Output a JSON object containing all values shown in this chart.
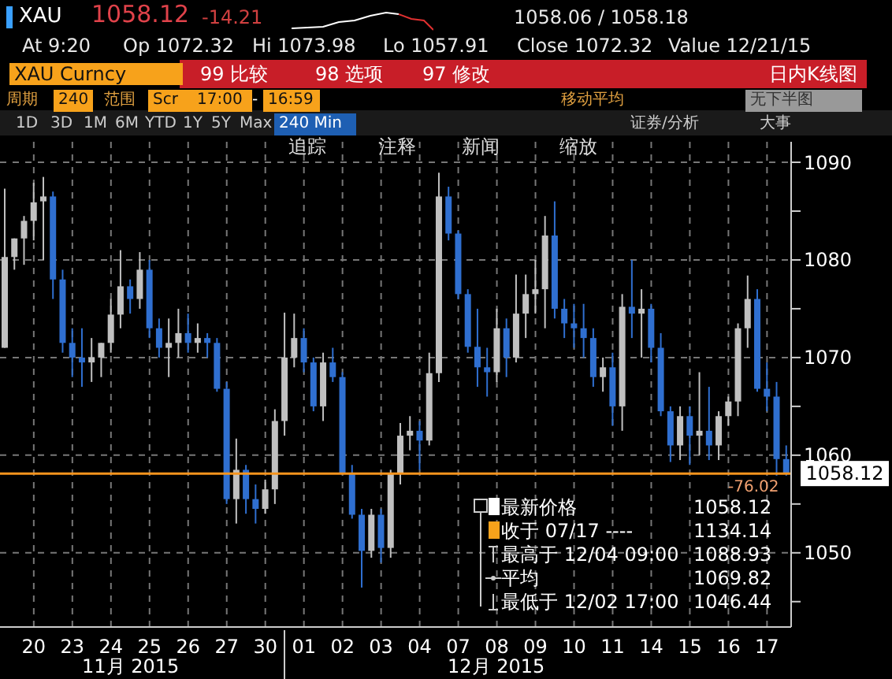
{
  "chart_data": {
    "type": "candlestick",
    "title": "XAU",
    "categories": [
      null,
      null,
      null,
      "20",
      null,
      null,
      null,
      "23",
      null,
      null,
      null,
      "24",
      null,
      null,
      null,
      "25",
      null,
      null,
      null,
      "26",
      null,
      null,
      null,
      "27",
      null,
      null,
      null,
      "30",
      null,
      null,
      null,
      "01",
      null,
      null,
      null,
      "02",
      null,
      null,
      null,
      "03",
      null,
      null,
      null,
      "04",
      null,
      null,
      null,
      "07",
      null,
      null,
      null,
      "08",
      null,
      null,
      null,
      "09",
      null,
      null,
      null,
      "10",
      null,
      null,
      null,
      "11",
      null,
      null,
      null,
      "14",
      null,
      null,
      null,
      "15",
      null,
      null,
      null,
      "16",
      null,
      null,
      null,
      "17",
      null,
      null
    ],
    "ohlc": [
      [
        1071,
        1087.3,
        1071,
        1080.3
      ],
      [
        1080.3,
        1082.2,
        1079,
        1082.2
      ],
      [
        1082.2,
        1084.5,
        1079.5,
        1084
      ],
      [
        1084,
        1087.9,
        1082,
        1085.9
      ],
      [
        1086,
        1088.5,
        1080,
        1086.5
      ],
      [
        1086.5,
        1087,
        1076,
        1078
      ],
      [
        1078,
        1079,
        1070.5,
        1071.5
      ],
      [
        1071.5,
        1073,
        1068,
        1070
      ],
      [
        1070,
        1073,
        1067,
        1069.5
      ],
      [
        1069.5,
        1072,
        1067.5,
        1070
      ],
      [
        1070,
        1071.5,
        1068,
        1071.5
      ],
      [
        1071.5,
        1076,
        1070.5,
        1074.4
      ],
      [
        1074.4,
        1081,
        1073,
        1077.3
      ],
      [
        1077.3,
        1078,
        1074.5,
        1076
      ],
      [
        1076,
        1080.8,
        1075,
        1079
      ],
      [
        1079,
        1080,
        1072,
        1073
      ],
      [
        1073,
        1074,
        1070,
        1071
      ],
      [
        1071,
        1074,
        1068,
        1071.5
      ],
      [
        1071.5,
        1075,
        1070,
        1072.5
      ],
      [
        1072.5,
        1074.5,
        1070.5,
        1071.5
      ],
      [
        1071.5,
        1073.5,
        1070.5,
        1072
      ],
      [
        1072,
        1072.5,
        1070,
        1071.5
      ],
      [
        1071.5,
        1072,
        1066.5,
        1066.8
      ],
      [
        1066.8,
        1067.5,
        1055,
        1055.5
      ],
      [
        1055.5,
        1061.7,
        1053,
        1058.5
      ],
      [
        1058.5,
        1059,
        1054,
        1055.5
      ],
      [
        1055.5,
        1057,
        1053,
        1054.5
      ],
      [
        1054.5,
        1057.5,
        1054,
        1056.5
      ],
      [
        1056.5,
        1064.7,
        1055,
        1063.5
      ],
      [
        1063.5,
        1074.6,
        1062,
        1070
      ],
      [
        1070,
        1074.5,
        1069,
        1072
      ],
      [
        1072,
        1073,
        1068.5,
        1069.5
      ],
      [
        1069.5,
        1070,
        1064.5,
        1065
      ],
      [
        1065,
        1070.5,
        1063.5,
        1069.5
      ],
      [
        1069.5,
        1071,
        1067.5,
        1068
      ],
      [
        1068,
        1068.5,
        1058,
        1058.2
      ],
      [
        1058.2,
        1059,
        1053.5,
        1053.9
      ],
      [
        1053.9,
        1054.5,
        1046.44,
        1050.2
      ],
      [
        1050.2,
        1054.5,
        1049.5,
        1053.9
      ],
      [
        1053.9,
        1054.5,
        1049,
        1050.5
      ],
      [
        1050.5,
        1058.5,
        1049.5,
        1058.2
      ],
      [
        1058.2,
        1063.3,
        1057,
        1062
      ],
      [
        1062,
        1064,
        1060.5,
        1062.5
      ],
      [
        1062.5,
        1063.5,
        1058.5,
        1061.5
      ],
      [
        1061.5,
        1070.5,
        1061,
        1068.4
      ],
      [
        1068.4,
        1088.93,
        1067.5,
        1086.5
      ],
      [
        1086.5,
        1087.5,
        1082,
        1082.7
      ],
      [
        1082.7,
        1083,
        1076,
        1076.5
      ],
      [
        1076.5,
        1077,
        1070.5,
        1071.1
      ],
      [
        1071.1,
        1075,
        1067,
        1069
      ],
      [
        1069,
        1071,
        1066,
        1068.5
      ],
      [
        1068.5,
        1075,
        1067.5,
        1073
      ],
      [
        1073,
        1074,
        1068,
        1070
      ],
      [
        1070,
        1078.5,
        1069.5,
        1074.5
      ],
      [
        1074.5,
        1078.5,
        1072,
        1076.5
      ],
      [
        1076.5,
        1080,
        1074.5,
        1077
      ],
      [
        1077,
        1084.5,
        1073,
        1082.5
      ],
      [
        1082.5,
        1086,
        1074,
        1075
      ],
      [
        1075,
        1076,
        1072,
        1073.5
      ],
      [
        1073.5,
        1075.5,
        1071,
        1073
      ],
      [
        1073,
        1075.5,
        1070,
        1072
      ],
      [
        1072,
        1073,
        1067,
        1068
      ],
      [
        1068,
        1070,
        1066.5,
        1069
      ],
      [
        1069,
        1070.5,
        1063,
        1065
      ],
      [
        1065,
        1076.5,
        1062.5,
        1075.2
      ],
      [
        1075.2,
        1080,
        1072,
        1074.5
      ],
      [
        1074.5,
        1077,
        1070,
        1075
      ],
      [
        1075,
        1075.5,
        1069.5,
        1071
      ],
      [
        1071,
        1072.5,
        1064,
        1064.5
      ],
      [
        1064.5,
        1065,
        1059.3,
        1061
      ],
      [
        1061,
        1065,
        1059.5,
        1064
      ],
      [
        1064,
        1065,
        1059,
        1062
      ],
      [
        1062,
        1068.5,
        1060,
        1062.5
      ],
      [
        1062.5,
        1067,
        1059.5,
        1061
      ],
      [
        1061,
        1064.5,
        1059.5,
        1064
      ],
      [
        1064,
        1066,
        1063,
        1065.5
      ],
      [
        1065.5,
        1073.5,
        1064,
        1073
      ],
      [
        1073,
        1078.4,
        1071,
        1076
      ],
      [
        1076,
        1077,
        1066.5,
        1066.8
      ],
      [
        1066.8,
        1069.5,
        1064.5,
        1066
      ],
      [
        1066,
        1067.5,
        1057.9,
        1059.6
      ],
      [
        1059.6,
        1061,
        1057.9,
        1058.12
      ]
    ],
    "colors": [
      "#c0c0c0",
      "#c0c0c0",
      "#c0c0c0",
      "#c0c0c0",
      "#c0c0c0",
      "#2f6fd0",
      "#2f6fd0",
      "#2f6fd0",
      "#2f6fd0",
      "#c0c0c0",
      "#c0c0c0",
      "#c0c0c0",
      "#c0c0c0",
      "#2f6fd0",
      "#c0c0c0",
      "#2f6fd0",
      "#2f6fd0",
      "#c0c0c0",
      "#c0c0c0",
      "#2f6fd0",
      "#c0c0c0",
      "#2f6fd0",
      "#2f6fd0",
      "#2f6fd0",
      "#c0c0c0",
      "#2f6fd0",
      "#2f6fd0",
      "#c0c0c0",
      "#c0c0c0",
      "#c0c0c0",
      "#c0c0c0",
      "#2f6fd0",
      "#2f6fd0",
      "#c0c0c0",
      "#2f6fd0",
      "#2f6fd0",
      "#2f6fd0",
      "#2f6fd0",
      "#c0c0c0",
      "#2f6fd0",
      "#c0c0c0",
      "#c0c0c0",
      "#c0c0c0",
      "#2f6fd0",
      "#c0c0c0",
      "#c0c0c0",
      "#2f6fd0",
      "#2f6fd0",
      "#2f6fd0",
      "#2f6fd0",
      "#2f6fd0",
      "#c0c0c0",
      "#2f6fd0",
      "#c0c0c0",
      "#c0c0c0",
      "#c0c0c0",
      "#c0c0c0",
      "#2f6fd0",
      "#2f6fd0",
      "#2f6fd0",
      "#2f6fd0",
      "#2f6fd0",
      "#c0c0c0",
      "#2f6fd0",
      "#c0c0c0",
      "#2f6fd0",
      "#c0c0c0",
      "#2f6fd0",
      "#2f6fd0",
      "#2f6fd0",
      "#c0c0c0",
      "#2f6fd0",
      "#c0c0c0",
      "#2f6fd0",
      "#c0c0c0",
      "#c0c0c0",
      "#c0c0c0",
      "#c0c0c0",
      "#2f6fd0",
      "#2f6fd0",
      "#2f6fd0",
      "#2f6fd0"
    ],
    "ylim": [
      1042.4,
      1092.1
    ],
    "yticks": [
      {
        "value": 1045,
        "label": null
      },
      1050,
      {
        "value": 1055,
        "label": null
      },
      1060,
      {
        "value": 1065,
        "label": null
      },
      1070,
      {
        "value": 1075,
        "label": null
      },
      1080,
      {
        "value": 1085,
        "label": null
      },
      1090
    ],
    "grid": true,
    "ref_lines": [
      {
        "axis": "y",
        "value": 1058.12,
        "label": "1058.12",
        "color": "#f7941d"
      }
    ],
    "annotations": [
      "1058.12",
      "-14.21",
      "1058.06 / 1058.18",
      "At 9:20",
      "Op 1072.32",
      "Hi 1073.98",
      "Lo 1057.91",
      "Close 1072.32",
      "Value 12/21/15",
      "XAU Curncy",
      "99 比较",
      "98 选项",
      "97 修改",
      "日内K线图",
      "周期",
      "240",
      "范围",
      "Scr",
      "17:00",
      "-",
      "16:59",
      "移动平均",
      "无下半图",
      "1D",
      "3D",
      "1M",
      "6M",
      "YTD",
      "1Y",
      "5Y",
      "Max",
      "240 Min",
      "证券/分析",
      "大事",
      "追踪",
      "注释",
      "新闻",
      "缩放",
      "最新价格",
      "1058.12",
      "收于 07/17 ----",
      "1134.14",
      "最高于 12/04 09:00",
      "1088.93",
      "平均",
      "1069.82",
      "最低于 12/02 17:00",
      "1046.44",
      "11月 2015",
      "12月 2015",
      "-76.02"
    ]
  }
}
